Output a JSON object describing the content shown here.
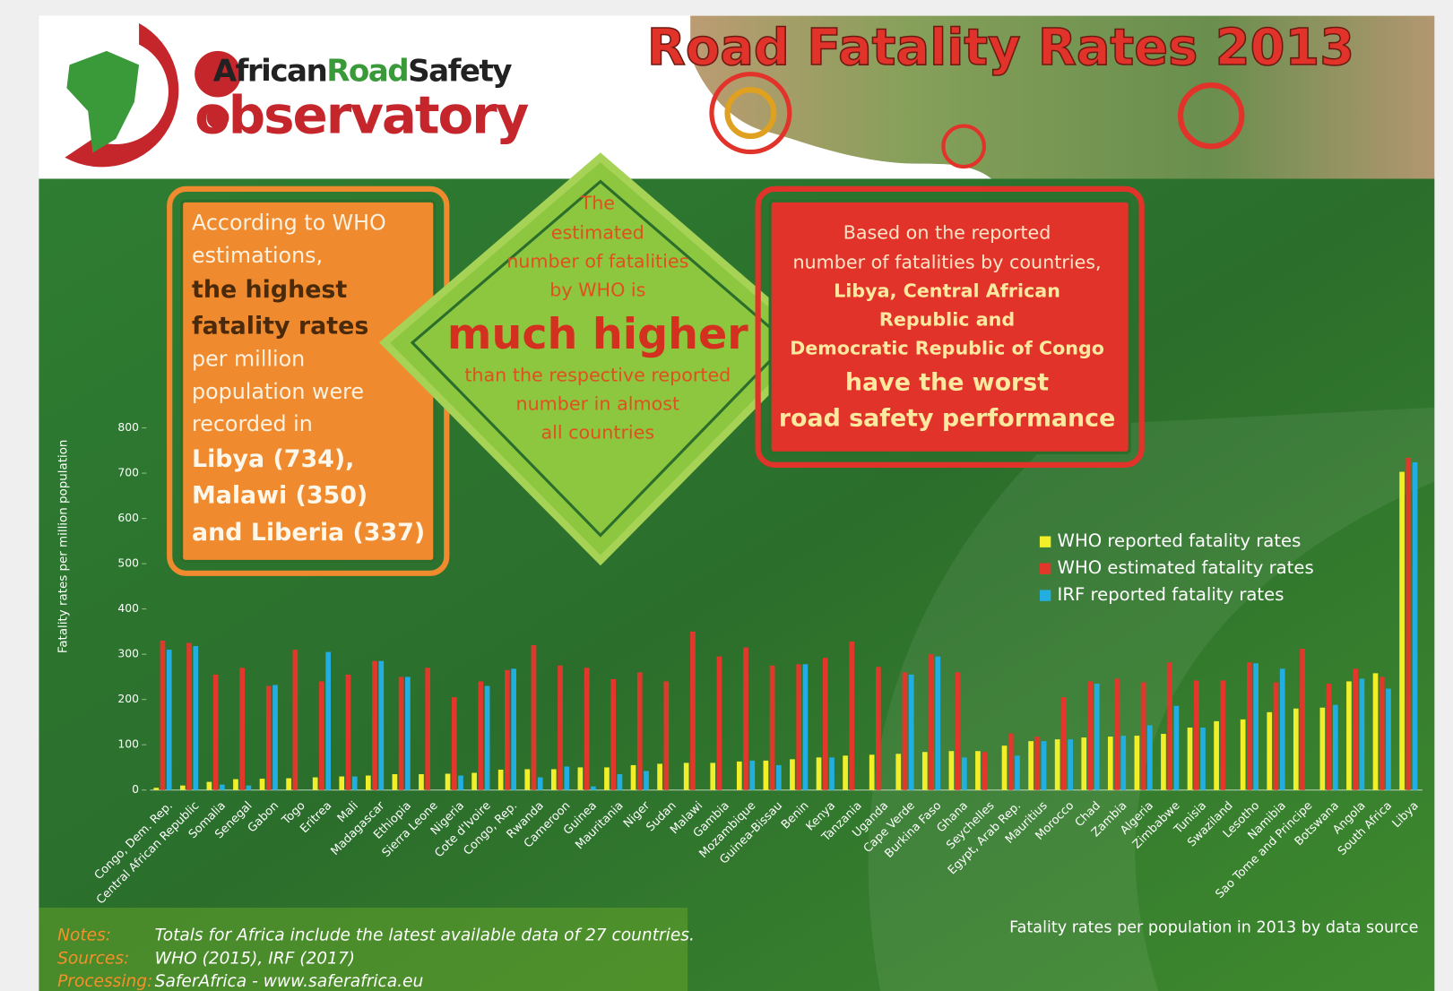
{
  "header": {
    "brand": [
      "African",
      "Road",
      "Safety"
    ],
    "word": "observatory",
    "title": "Road Fatality Rates 2013"
  },
  "callouts": {
    "orange": {
      "intro": [
        "According to WHO",
        "estimations,"
      ],
      "highlight": [
        "the highest",
        "fatality rates"
      ],
      "body": [
        "per million",
        "population were",
        "recorded in"
      ],
      "countries": [
        "Libya (734),",
        "Malawi (350)",
        "and Liberia (337)"
      ]
    },
    "green": {
      "intro": [
        "The",
        "estimated",
        "number of fatalities",
        "by WHO is"
      ],
      "highlight": "much higher",
      "body": [
        "than the respective reported",
        "number in almost",
        "all countries"
      ]
    },
    "red": {
      "intro": [
        "Based on the reported",
        "number of fatalities by countries,"
      ],
      "countries": [
        "Libya, Central African",
        "Republic and",
        "Democratic Republic of Congo"
      ],
      "highlight": [
        "have the worst",
        "road safety performance"
      ]
    }
  },
  "chart_data": {
    "type": "bar",
    "y_label": "Fatality rates per million population",
    "caption": "Fatality rates per population in 2013 by data source",
    "categories": [
      "Congo, Dem. Rep.",
      "Central African Republic",
      "Somalia",
      "Senegal",
      "Gabon",
      "Togo",
      "Eritrea",
      "Mali",
      "Madagascar",
      "Ethiopia",
      "Sierra Leone",
      "Nigeria",
      "Cote d'Ivoire",
      "Congo, Rep.",
      "Rwanda",
      "Cameroon",
      "Guinea",
      "Mauritania",
      "Niger",
      "Sudan",
      "Malawi",
      "Gambia",
      "Mozambique",
      "Guinea-Bissau",
      "Benin",
      "Kenya",
      "Tanzania",
      "Uganda",
      "Cape Verde",
      "Burkina Faso",
      "Ghana",
      "Seychelles",
      "Egypt, Arab Rep.",
      "Mauritius",
      "Morocco",
      "Chad",
      "Zambia",
      "Algeria",
      "Zimbabwe",
      "Tunisia",
      "Swaziland",
      "Lesotho",
      "Namibia",
      "Sao Tome and Principe",
      "Botswana",
      "Angola",
      "South Africa",
      "Libya"
    ],
    "series": [
      {
        "name": "WHO reported fatality rates",
        "color": "#f2ef2a",
        "values": [
          5,
          10,
          18,
          24,
          25,
          26,
          28,
          30,
          32,
          35,
          35,
          36,
          38,
          45,
          46,
          46,
          50,
          50,
          55,
          58,
          60,
          60,
          63,
          65,
          68,
          72,
          76,
          78,
          80,
          84,
          86,
          86,
          98,
          108,
          112,
          116,
          118,
          120,
          124,
          138,
          152,
          156,
          172,
          180,
          182,
          240,
          258,
          703
        ]
      },
      {
        "name": "WHO estimated fatality rates",
        "color": "#e2382c",
        "values": [
          330,
          325,
          255,
          270,
          230,
          310,
          240,
          255,
          285,
          250,
          270,
          205,
          240,
          265,
          320,
          275,
          270,
          245,
          260,
          240,
          350,
          295,
          315,
          275,
          278,
          292,
          328,
          272,
          260,
          300,
          260,
          84,
          125,
          118,
          205,
          240,
          246,
          238,
          282,
          242,
          242,
          282,
          238,
          312,
          235,
          268,
          250,
          734
        ]
      },
      {
        "name": "IRF reported fatality rates",
        "color": "#22aee0",
        "values": [
          310,
          318,
          12,
          10,
          232,
          null,
          305,
          30,
          285,
          250,
          null,
          32,
          230,
          268,
          28,
          52,
          8,
          35,
          42,
          null,
          null,
          null,
          65,
          55,
          278,
          72,
          null,
          null,
          255,
          295,
          72,
          null,
          76,
          108,
          112,
          235,
          120,
          143,
          186,
          138,
          null,
          280,
          268,
          null,
          188,
          246,
          224,
          724
        ]
      }
    ],
    "ylim": [
      0,
      800
    ],
    "yticks": [
      0,
      100,
      200,
      300,
      400,
      500,
      600,
      700,
      800
    ]
  },
  "notes": [
    {
      "label": "Notes:",
      "text": "Totals for Africa include the latest available data of 27 countries."
    },
    {
      "label": "Sources:",
      "text": "WHO (2015), IRF (2017)"
    },
    {
      "label": "Processing:",
      "text": "SaferAfrica - www.saferafrica.eu"
    }
  ]
}
